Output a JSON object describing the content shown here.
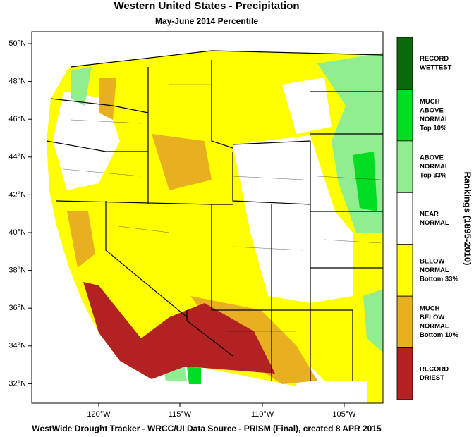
{
  "header": {
    "title": "Western United States - Precipitation",
    "subtitle": "May-June 2014 Percentile"
  },
  "map": {
    "lat_labels": [
      "50°N",
      "48°N",
      "46°N",
      "44°N",
      "42°N",
      "40°N",
      "38°N",
      "36°N",
      "34°N",
      "32°N"
    ],
    "lon_labels": [
      "120°W",
      "115°W",
      "110°W",
      "105°W"
    ]
  },
  "legend": {
    "title": "Rankings (1895-2010)",
    "items": [
      {
        "lines": [
          "RECORD",
          "WETTEST"
        ],
        "color": "#0a6a0a"
      },
      {
        "lines": [
          "MUCH",
          "ABOVE",
          "NORMAL",
          "Top 10%"
        ],
        "color": "#00dd22"
      },
      {
        "lines": [
          "ABOVE",
          "NORMAL",
          "Top 33%"
        ],
        "color": "#90ee90"
      },
      {
        "lines": [
          "NEAR",
          "NORMAL"
        ],
        "color": "#ffffff"
      },
      {
        "lines": [
          "BELOW",
          "NORMAL",
          "Bottom 33%"
        ],
        "color": "#ffff00"
      },
      {
        "lines": [
          "MUCH",
          "BELOW",
          "NORMAL",
          "Bottom 10%"
        ],
        "color": "#e8b020"
      },
      {
        "lines": [
          "RECORD",
          "DRIEST"
        ],
        "color": "#b22222"
      }
    ]
  },
  "footer": "WestWide Drought Tracker - WRCC/UI  Data Source - PRISM (Final), created  8 APR 2015"
}
